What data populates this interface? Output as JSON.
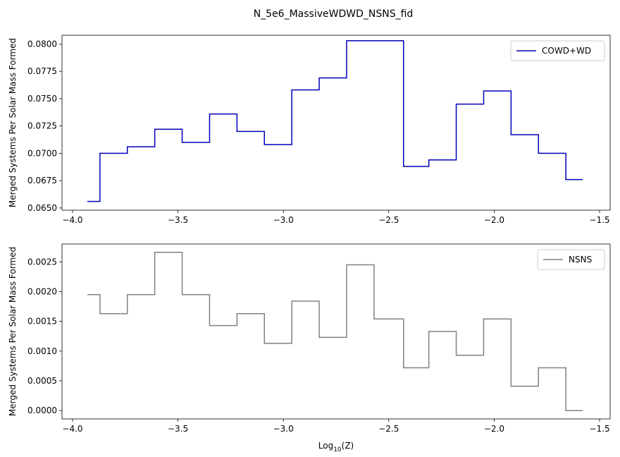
{
  "figure": {
    "title": "N_5e6_MassiveWDWD_NSNS_fid"
  },
  "chart_data": [
    {
      "type": "line",
      "step": true,
      "xlim": [
        -4.05,
        -1.45
      ],
      "ylim": [
        0.0648,
        0.0808
      ],
      "xticks": [
        -4.0,
        -3.5,
        -3.0,
        -2.5,
        -2.0,
        -1.5
      ],
      "xtick_labels": [
        "−4.0",
        "−3.5",
        "−3.0",
        "−2.5",
        "−2.0",
        "−1.5"
      ],
      "yticks": [
        0.065,
        0.0675,
        0.07,
        0.0725,
        0.075,
        0.0775,
        0.08
      ],
      "ytick_labels": [
        "0.0650",
        "0.0675",
        "0.0700",
        "0.0725",
        "0.0750",
        "0.0775",
        "0.0800"
      ],
      "ylabel": "Merged Systems Per Solar Mass Formed",
      "xlabel": "",
      "grid": false,
      "legend": "top-right",
      "series": [
        {
          "name": "COWD+WD",
          "color": "#0000bb",
          "x": [
            -3.93,
            -3.87,
            -3.74,
            -3.61,
            -3.48,
            -3.35,
            -3.22,
            -3.09,
            -2.96,
            -2.83,
            -2.7,
            -2.57,
            -2.43,
            -2.31,
            -2.18,
            -2.05,
            -1.92,
            -1.79,
            -1.66,
            -1.58
          ],
          "y": [
            0.0656,
            0.07,
            0.0706,
            0.0722,
            0.071,
            0.0736,
            0.072,
            0.0708,
            0.0758,
            0.0769,
            0.0803,
            0.0803,
            0.0688,
            0.0694,
            0.0745,
            0.0757,
            0.0717,
            0.07,
            0.0676,
            0.0676
          ]
        }
      ]
    },
    {
      "type": "line",
      "step": true,
      "xlim": [
        -4.05,
        -1.45
      ],
      "ylim": [
        -0.00014,
        0.0028
      ],
      "xticks": [
        -4.0,
        -3.5,
        -3.0,
        -2.5,
        -2.0,
        -1.5
      ],
      "xtick_labels": [
        "−4.0",
        "−3.5",
        "−3.0",
        "−2.5",
        "−2.0",
        "−1.5"
      ],
      "yticks": [
        0.0,
        0.0005,
        0.001,
        0.0015,
        0.002,
        0.0025
      ],
      "ytick_labels": [
        "0.0000",
        "0.0005",
        "0.0010",
        "0.0015",
        "0.0020",
        "0.0025"
      ],
      "ylabel": "Merged Systems Per Solar Mass Formed",
      "xlabel": "Log10(Z)",
      "xlabel_base": "Log",
      "xlabel_sub": "10",
      "xlabel_tail": "(Z)",
      "grid": false,
      "legend": "top-right",
      "series": [
        {
          "name": "NSNS",
          "color": "#808080",
          "x": [
            -3.93,
            -3.87,
            -3.74,
            -3.61,
            -3.48,
            -3.35,
            -3.22,
            -3.09,
            -2.96,
            -2.83,
            -2.7,
            -2.57,
            -2.43,
            -2.31,
            -2.18,
            -2.05,
            -1.92,
            -1.79,
            -1.66,
            -1.58
          ],
          "y": [
            0.00195,
            0.00163,
            0.00195,
            0.00266,
            0.00195,
            0.00143,
            0.00163,
            0.00113,
            0.00184,
            0.00123,
            0.00245,
            0.00154,
            0.00072,
            0.00133,
            0.00093,
            0.00154,
            0.00041,
            0.00072,
            0.0,
            0.0
          ]
        }
      ]
    }
  ]
}
